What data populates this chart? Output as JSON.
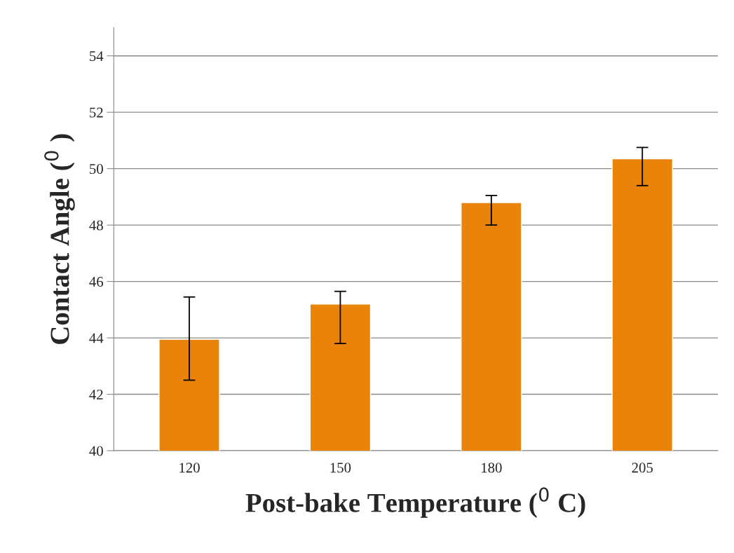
{
  "chart_data": {
    "type": "bar",
    "xlabel": "Post-bake Temperature ($^{0}$ C)",
    "ylabel": "Contact Angle ($^{0}$ )",
    "categories": [
      "120",
      "150",
      "180",
      "205"
    ],
    "values": [
      43.95,
      45.2,
      48.8,
      50.35
    ],
    "color": "#ea830a",
    "errors": [
      [
        42.5,
        45.45
      ],
      [
        43.8,
        45.65
      ],
      [
        48.0,
        49.05
      ],
      [
        49.4,
        50.75
      ]
    ],
    "ylim": [
      40,
      55
    ],
    "yticks": [
      40,
      42,
      44,
      46,
      48,
      50,
      52,
      54
    ],
    "grid": "y"
  }
}
